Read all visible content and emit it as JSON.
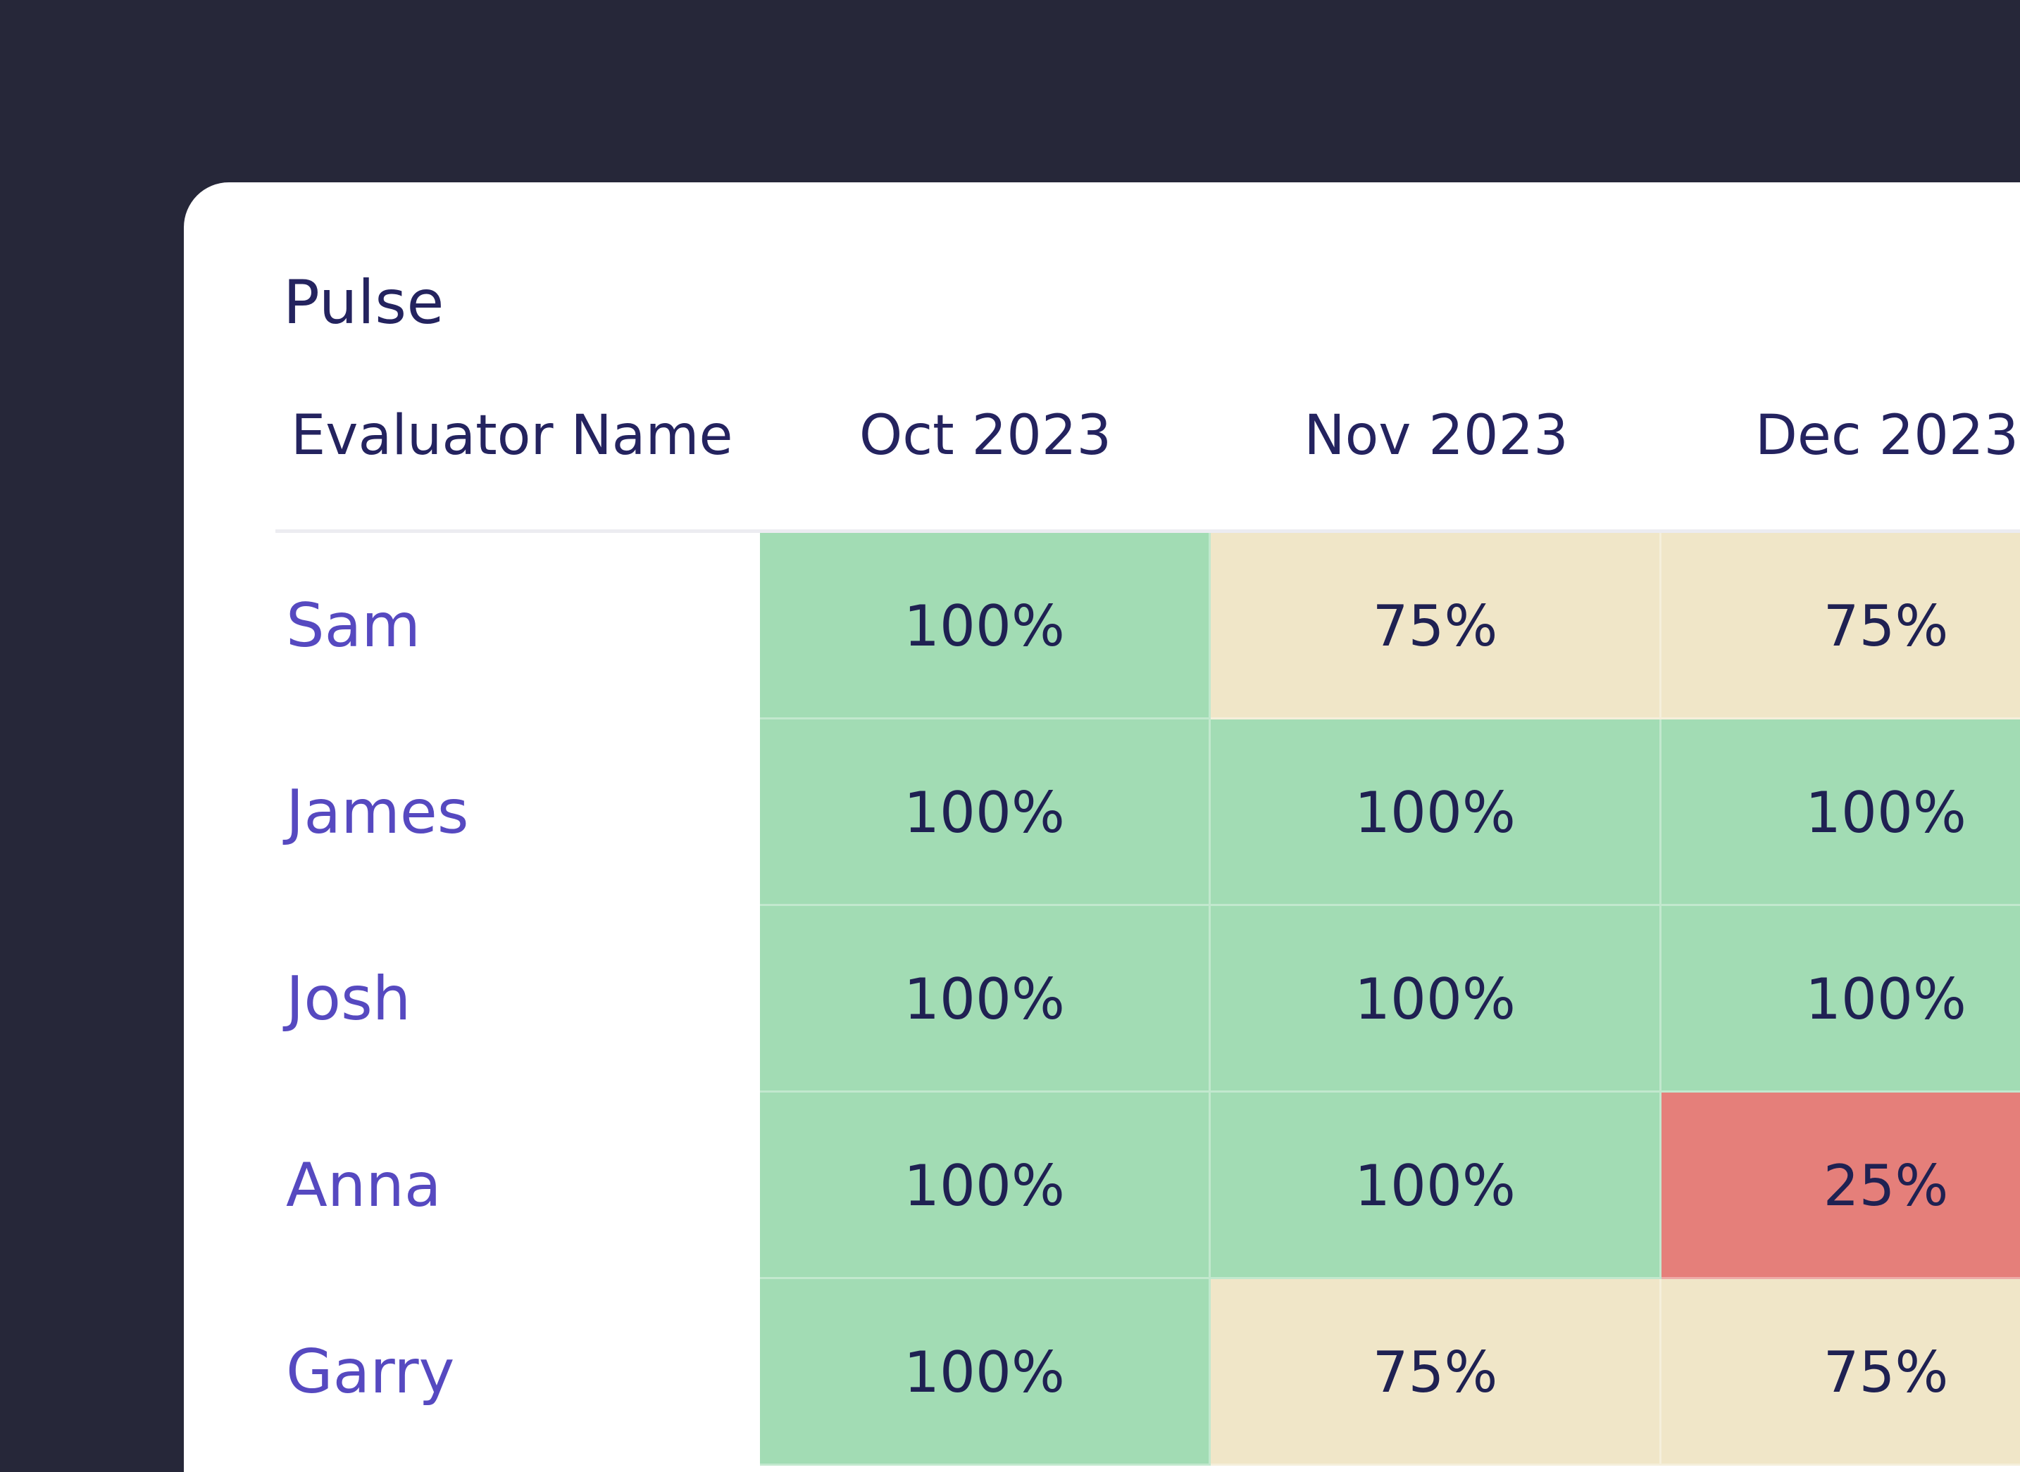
{
  "title": "Pulse",
  "table": {
    "columns": {
      "name_header": "Evaluator Name",
      "months": [
        "Oct 2023",
        "Nov 2023",
        "Dec 2023"
      ]
    },
    "rows": [
      {
        "name": "Sam",
        "values": [
          "100%",
          "75%",
          "75%"
        ],
        "status": [
          "green",
          "beige",
          "beige"
        ]
      },
      {
        "name": "James",
        "values": [
          "100%",
          "100%",
          "100%"
        ],
        "status": [
          "green",
          "green",
          "green"
        ]
      },
      {
        "name": "Josh",
        "values": [
          "100%",
          "100%",
          "100%"
        ],
        "status": [
          "green",
          "green",
          "green"
        ]
      },
      {
        "name": "Anna",
        "values": [
          "100%",
          "100%",
          "25%"
        ],
        "status": [
          "green",
          "green",
          "red"
        ]
      },
      {
        "name": "Garry",
        "values": [
          "100%",
          "75%",
          "75%"
        ],
        "status": [
          "green",
          "beige",
          "beige"
        ]
      }
    ]
  },
  "colors": {
    "background": "#262739",
    "card": "#ffffff",
    "title": "#24235f",
    "name": "#5649c0",
    "green": "#a2dcb4",
    "beige": "#f0e6c8",
    "red": "#e57f7a"
  }
}
